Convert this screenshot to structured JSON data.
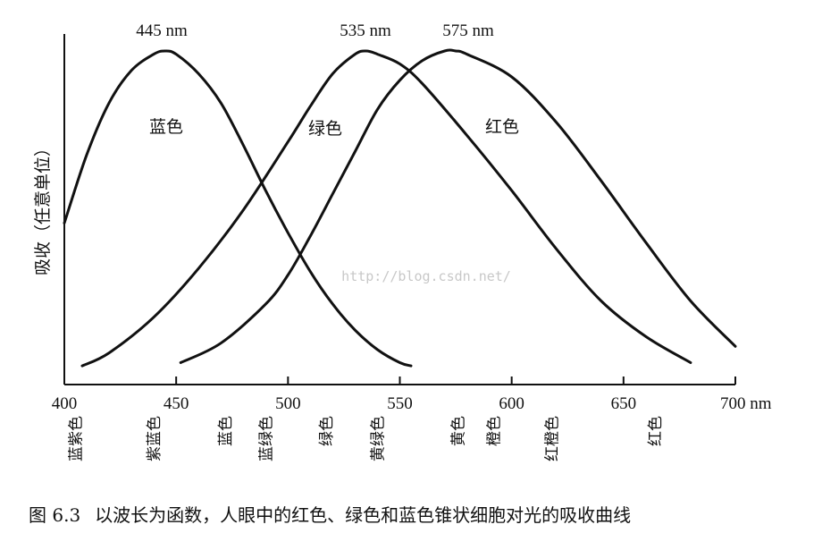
{
  "chart_data": {
    "type": "line",
    "title": "",
    "xlabel": "",
    "ylabel": "吸收（任意单位）",
    "x_unit": "nm",
    "xlim": [
      400,
      700
    ],
    "ylim": [
      0,
      1
    ],
    "x_ticks": [
      400,
      450,
      500,
      550,
      600,
      650,
      700
    ],
    "grid": false,
    "series": [
      {
        "name": "蓝色",
        "peak_label": "445 nm",
        "color": "#111111",
        "x": [
          400,
          410,
          420,
          430,
          440,
          445,
          450,
          460,
          470,
          480,
          490,
          500,
          510,
          520,
          530,
          540,
          550,
          555
        ],
        "y": [
          0.47,
          0.68,
          0.84,
          0.94,
          0.99,
          1.0,
          0.99,
          0.93,
          0.84,
          0.71,
          0.57,
          0.44,
          0.32,
          0.22,
          0.14,
          0.08,
          0.04,
          0.03
        ]
      },
      {
        "name": "绿色",
        "peak_label": "535 nm",
        "color": "#111111",
        "x": [
          408,
          420,
          440,
          460,
          480,
          500,
          510,
          520,
          530,
          535,
          540,
          550,
          560,
          580,
          600,
          620,
          640,
          660,
          680
        ],
        "y": [
          0.03,
          0.07,
          0.18,
          0.33,
          0.51,
          0.72,
          0.83,
          0.93,
          0.99,
          1.0,
          0.99,
          0.96,
          0.9,
          0.74,
          0.57,
          0.39,
          0.23,
          0.12,
          0.04
        ]
      },
      {
        "name": "红色",
        "peak_label": "575 nm",
        "color": "#111111",
        "x": [
          452,
          470,
          490,
          500,
          510,
          520,
          530,
          540,
          550,
          560,
          570,
          575,
          580,
          600,
          620,
          640,
          660,
          680,
          700
        ],
        "y": [
          0.04,
          0.1,
          0.22,
          0.31,
          0.43,
          0.56,
          0.69,
          0.82,
          0.91,
          0.97,
          1.0,
          1.0,
          0.99,
          0.92,
          0.78,
          0.6,
          0.41,
          0.23,
          0.09
        ]
      }
    ],
    "color_names": [
      {
        "label": "蓝紫色",
        "x": 405
      },
      {
        "label": "紫蓝色",
        "x": 440
      },
      {
        "label": "蓝色",
        "x": 472
      },
      {
        "label": "蓝绿色",
        "x": 490
      },
      {
        "label": "绿色",
        "x": 517
      },
      {
        "label": "黄绿色",
        "x": 540
      },
      {
        "label": "黄色",
        "x": 576
      },
      {
        "label": "橙色",
        "x": 592
      },
      {
        "label": "红橙色",
        "x": 618
      },
      {
        "label": "红色",
        "x": 664
      }
    ],
    "watermark": "http://blog.csdn.net/"
  },
  "caption": {
    "figure_number": "图 6.3",
    "text": "以波长为函数，人眼中的红色、绿色和蓝色锥状细胞对光的吸收曲线"
  }
}
